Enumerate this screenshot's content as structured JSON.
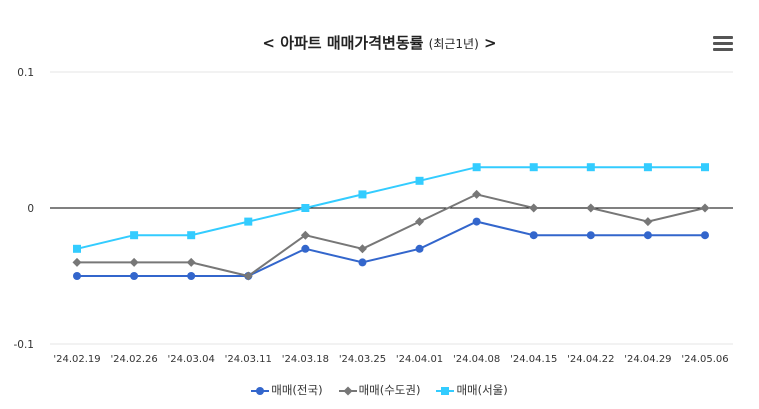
{
  "chart_data": {
    "type": "line",
    "title": "< 아파트 매매가격변동률",
    "subtitle": "(최근1년)",
    "title_end": ">",
    "categories": [
      "'24.02.19",
      "'24.02.26",
      "'24.03.04",
      "'24.03.11",
      "'24.03.18",
      "'24.03.25",
      "'24.04.01",
      "'24.04.08",
      "'24.04.15",
      "'24.04.22",
      "'24.04.29",
      "'24.05.06"
    ],
    "ylim": [
      -0.1,
      0.1
    ],
    "yticks": [
      0.1,
      0,
      -0.1
    ],
    "ytick_labels": [
      "0.1",
      "0",
      "-0.1"
    ],
    "grid": true,
    "legend_position": "bottom",
    "series": [
      {
        "name": "매매(전국)",
        "color": "#3366cc",
        "marker": "circle",
        "values": [
          -0.05,
          -0.05,
          -0.05,
          -0.05,
          -0.03,
          -0.04,
          -0.03,
          -0.01,
          -0.02,
          -0.02,
          -0.02,
          -0.02
        ]
      },
      {
        "name": "매매(수도권)",
        "color": "#777777",
        "marker": "diamond",
        "values": [
          -0.04,
          -0.04,
          -0.04,
          -0.05,
          -0.02,
          -0.03,
          -0.01,
          0.01,
          0.0,
          0.0,
          -0.01,
          0.0
        ]
      },
      {
        "name": "매매(서울)",
        "color": "#33ccff",
        "marker": "square",
        "values": [
          -0.03,
          -0.02,
          -0.02,
          -0.01,
          0.0,
          0.01,
          0.02,
          0.03,
          0.03,
          0.03,
          0.03,
          0.03
        ]
      }
    ]
  },
  "menu_icon": "hamburger-menu-icon"
}
